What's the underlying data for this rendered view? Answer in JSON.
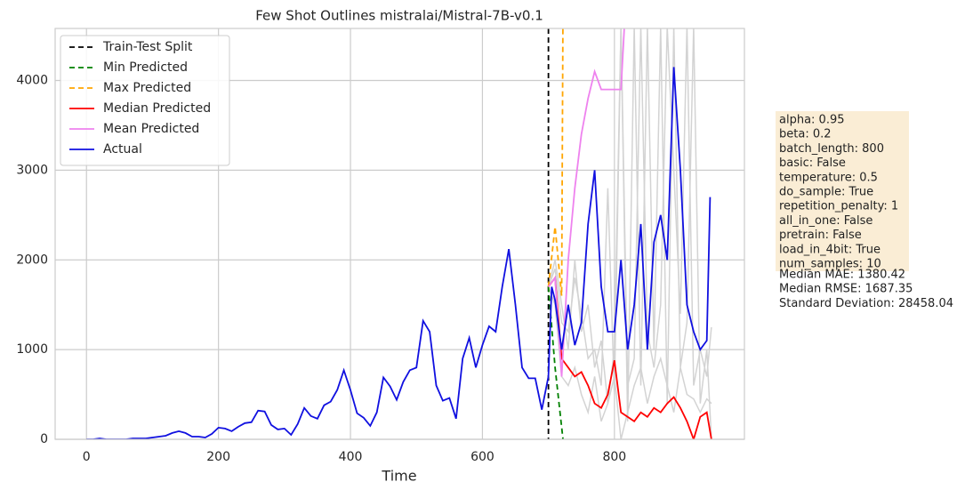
{
  "chart_data": {
    "type": "line",
    "title": "Few Shot Outlines mistralai/Mistral-7B-v0.1",
    "xlabel": "Time",
    "xlim": [
      -47.5,
      997
    ],
    "ylim": [
      0,
      4580
    ],
    "xticks": [
      0,
      200,
      400,
      600,
      800
    ],
    "yticks": [
      0,
      1000,
      2000,
      3000,
      4000
    ],
    "grid": true,
    "legend": "upper left",
    "vlines": [
      {
        "name": "Train-Test Split",
        "x": 700,
        "color": "#000000",
        "dash": true
      }
    ],
    "samples": {
      "color": "#d3d3d3",
      "lines": [
        {
          "x": [
            700,
            710,
            720,
            730,
            740,
            750,
            760,
            770,
            780,
            790,
            800,
            810,
            820,
            830,
            840,
            850,
            860,
            870,
            880,
            890,
            900,
            910,
            920,
            930,
            940,
            947
          ],
          "values": [
            1700,
            1900,
            1300,
            1200,
            1800,
            1400,
            900,
            1000,
            600,
            2800,
            500,
            4600,
            600,
            900,
            4600,
            1200,
            800,
            1500,
            4600,
            3000,
            1400,
            4600,
            600,
            1000,
            700,
            1250
          ]
        },
        {
          "x": [
            700,
            710,
            720,
            730,
            740,
            750,
            760,
            770,
            780,
            790,
            800,
            810,
            820,
            830,
            840,
            850,
            860,
            870,
            880,
            890,
            900,
            910,
            920,
            930,
            940,
            947
          ],
          "values": [
            1700,
            1500,
            700,
            600,
            800,
            500,
            300,
            700,
            200,
            400,
            700,
            0,
            300,
            600,
            800,
            400,
            700,
            900,
            600,
            300,
            800,
            500,
            450,
            300,
            450,
            400
          ]
        },
        {
          "x": [
            700,
            710,
            720,
            730,
            740,
            750,
            760,
            770,
            780,
            790,
            800,
            810,
            820,
            830,
            840,
            850,
            860,
            870,
            880,
            890,
            900,
            910,
            920,
            930,
            940,
            947
          ],
          "values": [
            1700,
            2000,
            1500,
            1000,
            2000,
            1200,
            1500,
            800,
            1100,
            400,
            1000,
            4600,
            200,
            4600,
            600,
            4600,
            1000,
            4600,
            400,
            4600,
            800,
            1300,
            4600,
            400,
            1000,
            0
          ]
        }
      ]
    },
    "series": [
      {
        "name": "Min Predicted",
        "color": "#008000",
        "dash": true,
        "x": [
          700,
          710,
          722
        ],
        "values": [
          1700,
          800,
          0
        ]
      },
      {
        "name": "Max Predicted",
        "color": "#ffa500",
        "dash": true,
        "x": [
          700,
          710,
          720,
          722
        ],
        "values": [
          1700,
          2370,
          1600,
          4800
        ]
      },
      {
        "name": "Median Predicted",
        "color": "#ff0000",
        "dash": false,
        "x": [
          700,
          710,
          720,
          730,
          740,
          750,
          760,
          770,
          780,
          790,
          800,
          810,
          820,
          830,
          840,
          850,
          860,
          870,
          880,
          890,
          900,
          910,
          920,
          930,
          940,
          947
        ],
        "values": [
          1700,
          1800,
          900,
          800,
          700,
          750,
          600,
          400,
          350,
          500,
          880,
          300,
          250,
          200,
          300,
          250,
          350,
          300,
          400,
          470,
          350,
          200,
          0,
          250,
          300,
          0
        ]
      },
      {
        "name": "Mean Predicted",
        "color": "#ee82ee",
        "dash": false,
        "x": [
          700,
          710,
          720,
          730,
          740,
          750,
          760,
          770,
          780,
          790,
          800,
          810,
          815,
          820
        ],
        "values": [
          1700,
          1800,
          700,
          2000,
          2800,
          3400,
          3800,
          4100,
          3900,
          3900,
          3900,
          3900,
          4600,
          4800
        ]
      },
      {
        "name": "Actual",
        "color": "#1010e0",
        "dash": false,
        "x": [
          0,
          10,
          20,
          30,
          40,
          50,
          60,
          70,
          80,
          90,
          100,
          110,
          120,
          130,
          140,
          150,
          160,
          170,
          180,
          190,
          200,
          210,
          220,
          230,
          240,
          250,
          260,
          270,
          280,
          290,
          300,
          310,
          320,
          330,
          340,
          350,
          360,
          370,
          380,
          390,
          400,
          410,
          420,
          430,
          440,
          450,
          460,
          470,
          480,
          490,
          500,
          510,
          520,
          530,
          540,
          550,
          560,
          570,
          580,
          590,
          600,
          610,
          620,
          630,
          640,
          650,
          660,
          670,
          680,
          690,
          700,
          705,
          710,
          720,
          730,
          740,
          750,
          760,
          770,
          780,
          790,
          800,
          810,
          820,
          830,
          840,
          850,
          860,
          870,
          880,
          890,
          900,
          910,
          920,
          930,
          940,
          945
        ],
        "values": [
          0,
          0,
          10,
          0,
          0,
          0,
          0,
          10,
          10,
          10,
          20,
          30,
          40,
          70,
          90,
          70,
          30,
          30,
          20,
          60,
          130,
          120,
          90,
          140,
          180,
          190,
          320,
          310,
          160,
          110,
          120,
          50,
          170,
          350,
          260,
          230,
          380,
          420,
          550,
          770,
          550,
          290,
          240,
          150,
          300,
          690,
          590,
          440,
          640,
          770,
          800,
          1320,
          1200,
          600,
          430,
          460,
          230,
          900,
          1130,
          800,
          1050,
          1260,
          1200,
          1700,
          2120,
          1500,
          800,
          680,
          680,
          330,
          700,
          1700,
          1550,
          1000,
          1500,
          1050,
          1300,
          2400,
          3000,
          1700,
          1200,
          1200,
          2000,
          1000,
          1500,
          2400,
          1000,
          2200,
          2500,
          2000,
          4150,
          3000,
          1500,
          1200,
          1000,
          1100,
          2700
        ]
      }
    ],
    "annotations": [
      "alpha: 0.95",
      "beta: 0.2",
      "batch_length: 800",
      "basic: False",
      "temperature: 0.5",
      "do_sample: True",
      "repetition_penalty: 1",
      "all_in_one: False",
      "pretrain: False",
      "load_in_4bit: True",
      "num_samples: 10",
      "Median MAE: 1380.42",
      "Median RMSE: 1687.35",
      "Standard Deviation: 28458.04"
    ]
  }
}
